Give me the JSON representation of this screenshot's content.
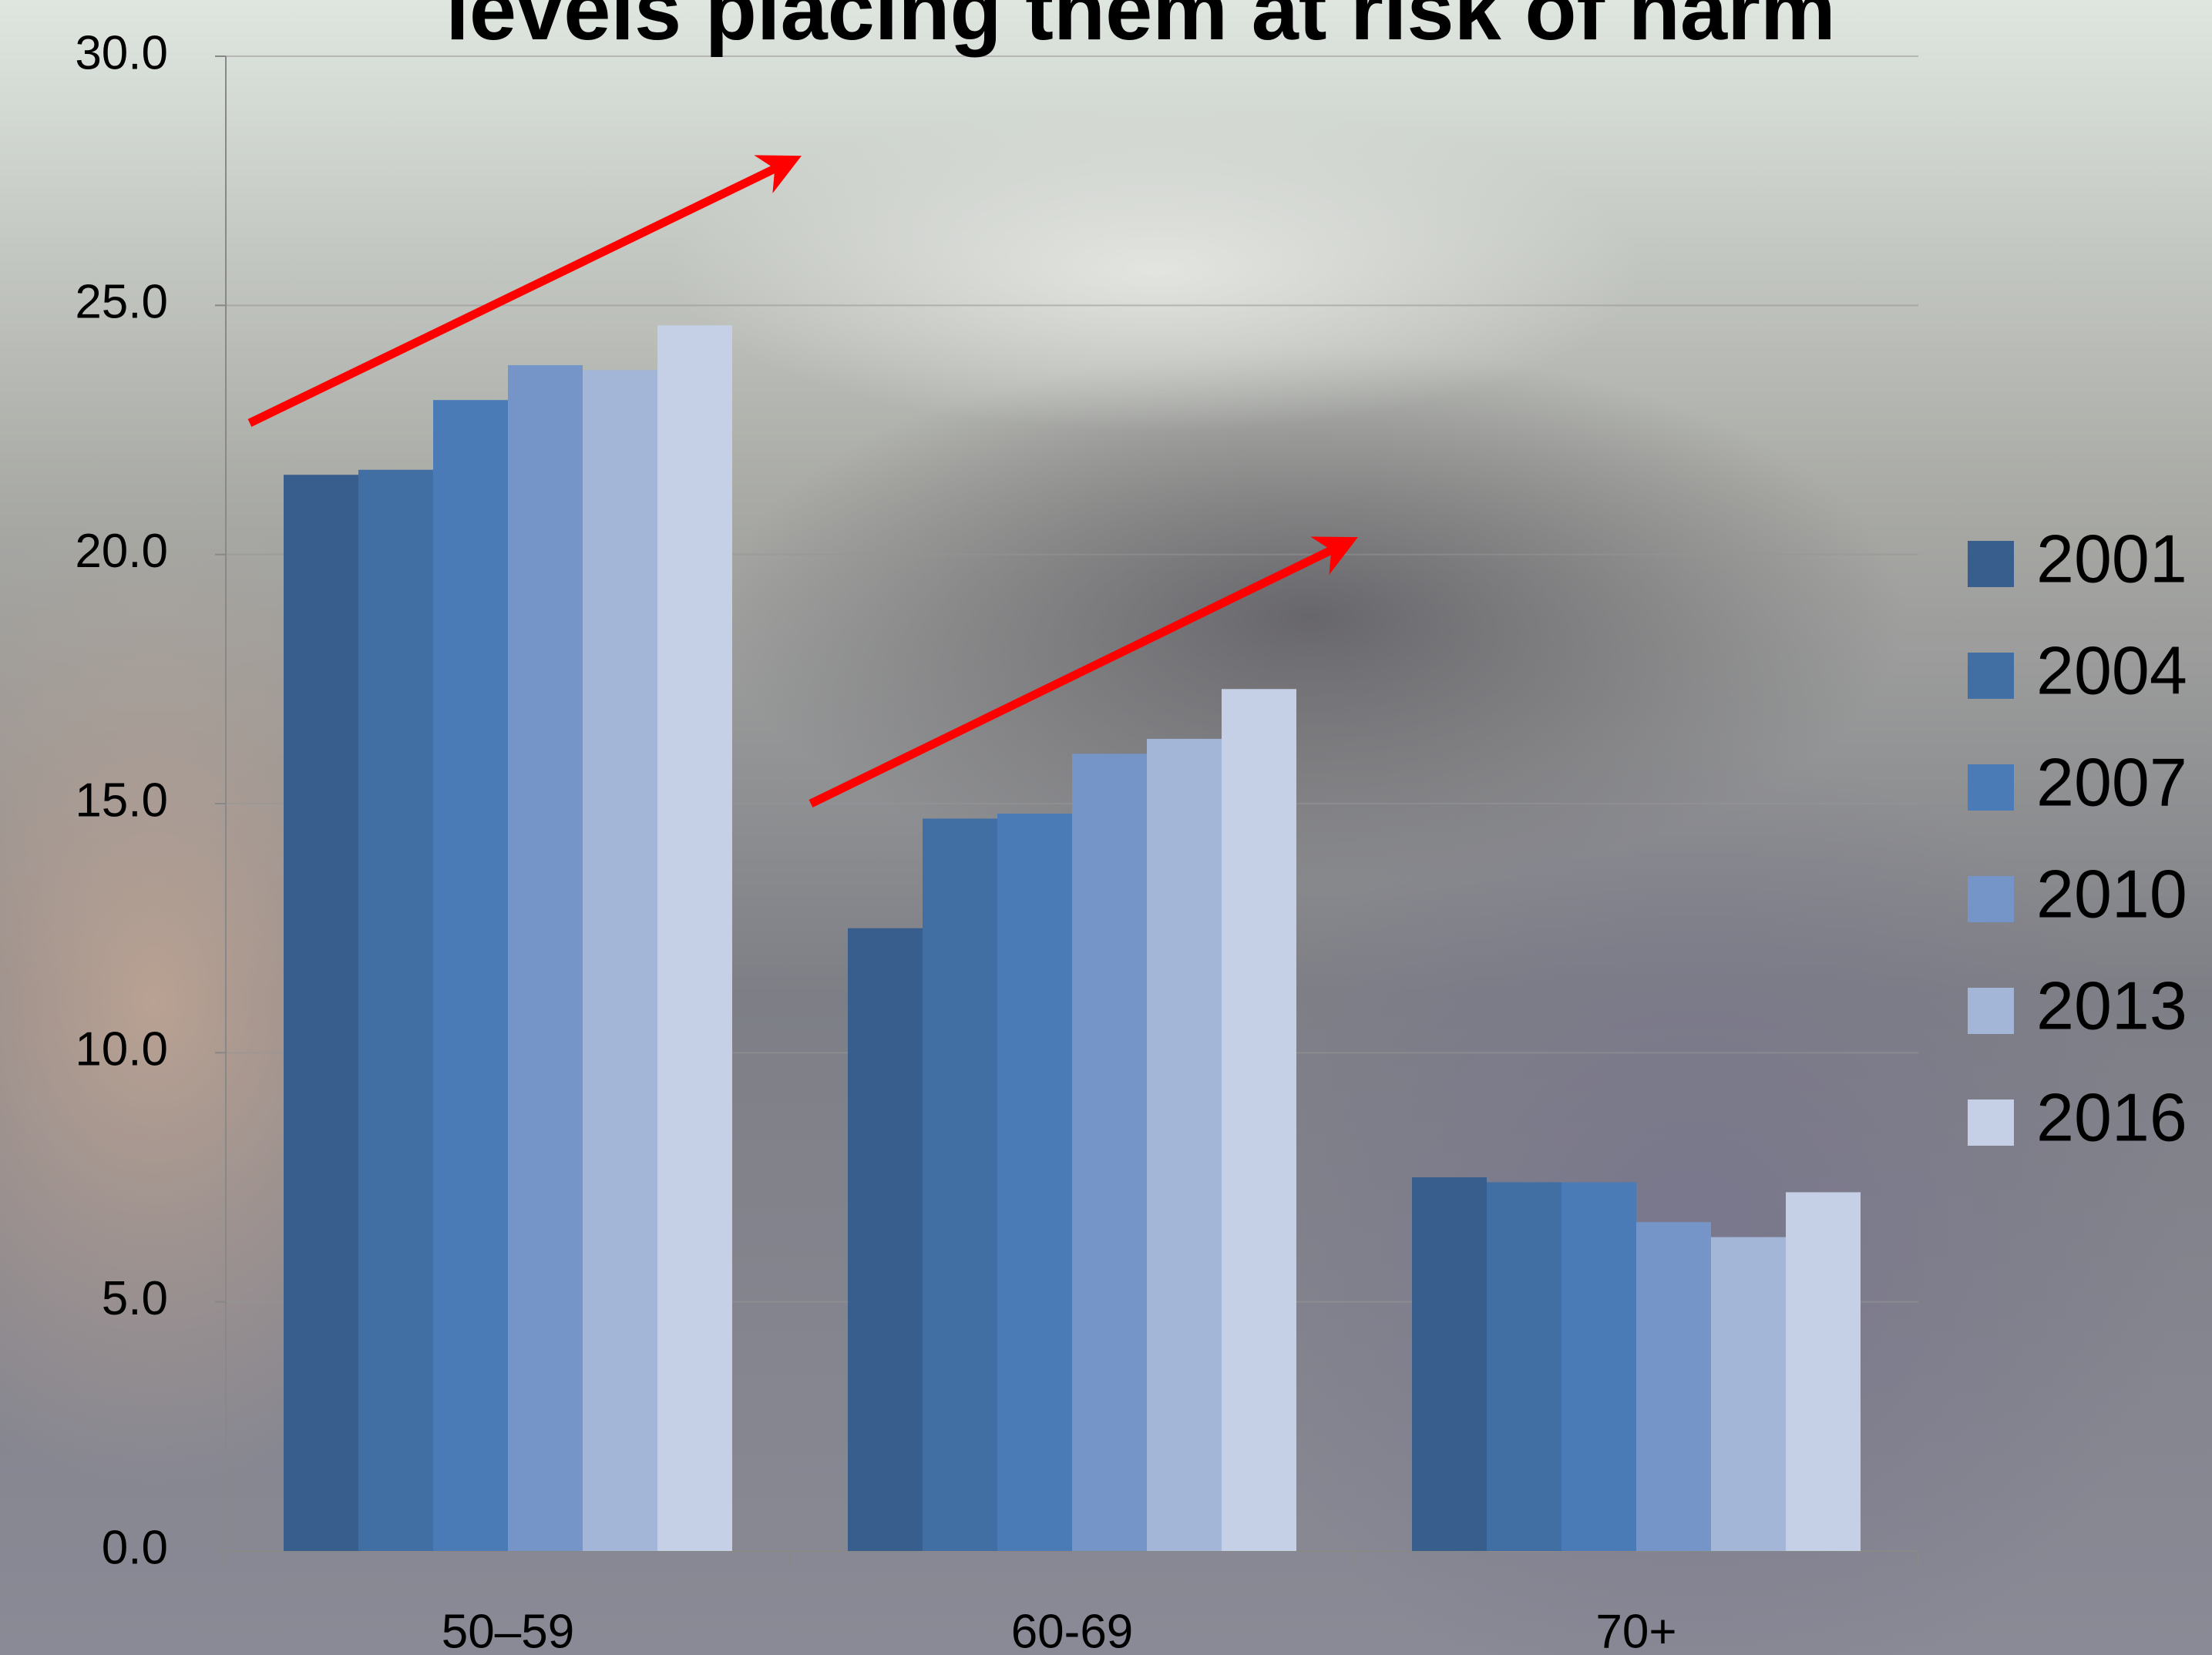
{
  "chart_data": {
    "type": "bar",
    "title": "levels placing them at risk of harm",
    "categories": [
      "50–59",
      "60-69",
      "70+"
    ],
    "series": [
      {
        "name": "2001",
        "color": "#375e8c",
        "values": [
          21.6,
          12.5,
          7.5
        ]
      },
      {
        "name": "2004",
        "color": "#416ea3",
        "values": [
          21.7,
          14.7,
          7.4
        ]
      },
      {
        "name": "2007",
        "color": "#4a7bb6",
        "values": [
          23.1,
          14.8,
          7.4
        ]
      },
      {
        "name": "2010",
        "color": "#7595c9",
        "values": [
          23.8,
          16.0,
          6.6
        ]
      },
      {
        "name": "2013",
        "color": "#a3b6d8",
        "values": [
          23.7,
          16.3,
          6.3
        ]
      },
      {
        "name": "2016",
        "color": "#c5d0e6",
        "values": [
          24.6,
          17.3,
          7.2
        ]
      }
    ],
    "ylim": [
      0,
      30
    ],
    "yticks": [
      {
        "value": 0,
        "label": "0.0"
      },
      {
        "value": 5,
        "label": "5.0"
      },
      {
        "value": 10,
        "label": "10.0"
      },
      {
        "value": 15,
        "label": "15.0"
      },
      {
        "value": 20,
        "label": "20.0"
      },
      {
        "value": 25,
        "label": "25.0"
      },
      {
        "value": 30,
        "label": "30.0"
      }
    ],
    "grid": true,
    "legend": "right"
  }
}
